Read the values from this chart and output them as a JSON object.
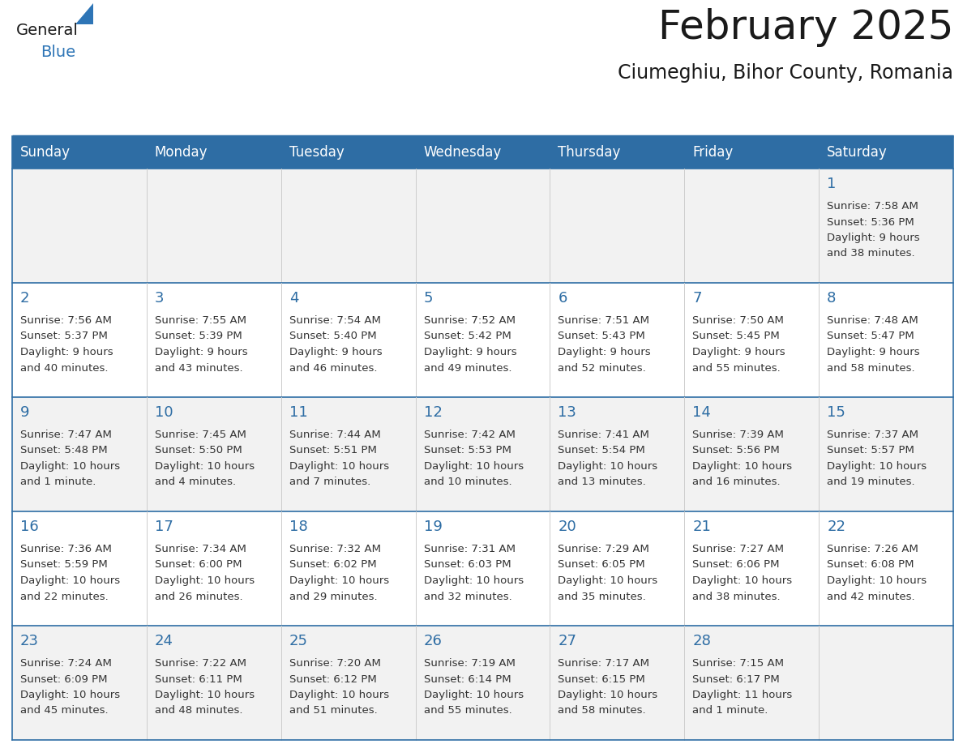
{
  "title": "February 2025",
  "subtitle": "Ciumeghiu, Bihor County, Romania",
  "header_bg": "#2E6DA4",
  "header_text_color": "#FFFFFF",
  "cell_bg_gray": "#F2F2F2",
  "cell_bg_white": "#FFFFFF",
  "day_headers": [
    "Sunday",
    "Monday",
    "Tuesday",
    "Wednesday",
    "Thursday",
    "Friday",
    "Saturday"
  ],
  "title_color": "#1a1a1a",
  "subtitle_color": "#1a1a1a",
  "day_num_color": "#2E6DA4",
  "info_color": "#333333",
  "line_color": "#2E6DA4",
  "border_color": "#2E6DA4",
  "sep_color": "#CCCCCC",
  "logo_general_color": "#1a1a1a",
  "logo_blue_color": "#2E75B6",
  "title_fontsize": 36,
  "subtitle_fontsize": 17,
  "header_fontsize": 12,
  "daynum_fontsize": 13,
  "info_fontsize": 9.5,
  "calendar": [
    [
      null,
      null,
      null,
      null,
      null,
      null,
      {
        "day": 1,
        "sunrise": "7:58 AM",
        "sunset": "5:36 PM",
        "daylight": "9 hours and 38 minutes."
      }
    ],
    [
      {
        "day": 2,
        "sunrise": "7:56 AM",
        "sunset": "5:37 PM",
        "daylight": "9 hours and 40 minutes."
      },
      {
        "day": 3,
        "sunrise": "7:55 AM",
        "sunset": "5:39 PM",
        "daylight": "9 hours and 43 minutes."
      },
      {
        "day": 4,
        "sunrise": "7:54 AM",
        "sunset": "5:40 PM",
        "daylight": "9 hours and 46 minutes."
      },
      {
        "day": 5,
        "sunrise": "7:52 AM",
        "sunset": "5:42 PM",
        "daylight": "9 hours and 49 minutes."
      },
      {
        "day": 6,
        "sunrise": "7:51 AM",
        "sunset": "5:43 PM",
        "daylight": "9 hours and 52 minutes."
      },
      {
        "day": 7,
        "sunrise": "7:50 AM",
        "sunset": "5:45 PM",
        "daylight": "9 hours and 55 minutes."
      },
      {
        "day": 8,
        "sunrise": "7:48 AM",
        "sunset": "5:47 PM",
        "daylight": "9 hours and 58 minutes."
      }
    ],
    [
      {
        "day": 9,
        "sunrise": "7:47 AM",
        "sunset": "5:48 PM",
        "daylight": "10 hours and 1 minute."
      },
      {
        "day": 10,
        "sunrise": "7:45 AM",
        "sunset": "5:50 PM",
        "daylight": "10 hours and 4 minutes."
      },
      {
        "day": 11,
        "sunrise": "7:44 AM",
        "sunset": "5:51 PM",
        "daylight": "10 hours and 7 minutes."
      },
      {
        "day": 12,
        "sunrise": "7:42 AM",
        "sunset": "5:53 PM",
        "daylight": "10 hours and 10 minutes."
      },
      {
        "day": 13,
        "sunrise": "7:41 AM",
        "sunset": "5:54 PM",
        "daylight": "10 hours and 13 minutes."
      },
      {
        "day": 14,
        "sunrise": "7:39 AM",
        "sunset": "5:56 PM",
        "daylight": "10 hours and 16 minutes."
      },
      {
        "day": 15,
        "sunrise": "7:37 AM",
        "sunset": "5:57 PM",
        "daylight": "10 hours and 19 minutes."
      }
    ],
    [
      {
        "day": 16,
        "sunrise": "7:36 AM",
        "sunset": "5:59 PM",
        "daylight": "10 hours and 22 minutes."
      },
      {
        "day": 17,
        "sunrise": "7:34 AM",
        "sunset": "6:00 PM",
        "daylight": "10 hours and 26 minutes."
      },
      {
        "day": 18,
        "sunrise": "7:32 AM",
        "sunset": "6:02 PM",
        "daylight": "10 hours and 29 minutes."
      },
      {
        "day": 19,
        "sunrise": "7:31 AM",
        "sunset": "6:03 PM",
        "daylight": "10 hours and 32 minutes."
      },
      {
        "day": 20,
        "sunrise": "7:29 AM",
        "sunset": "6:05 PM",
        "daylight": "10 hours and 35 minutes."
      },
      {
        "day": 21,
        "sunrise": "7:27 AM",
        "sunset": "6:06 PM",
        "daylight": "10 hours and 38 minutes."
      },
      {
        "day": 22,
        "sunrise": "7:26 AM",
        "sunset": "6:08 PM",
        "daylight": "10 hours and 42 minutes."
      }
    ],
    [
      {
        "day": 23,
        "sunrise": "7:24 AM",
        "sunset": "6:09 PM",
        "daylight": "10 hours and 45 minutes."
      },
      {
        "day": 24,
        "sunrise": "7:22 AM",
        "sunset": "6:11 PM",
        "daylight": "10 hours and 48 minutes."
      },
      {
        "day": 25,
        "sunrise": "7:20 AM",
        "sunset": "6:12 PM",
        "daylight": "10 hours and 51 minutes."
      },
      {
        "day": 26,
        "sunrise": "7:19 AM",
        "sunset": "6:14 PM",
        "daylight": "10 hours and 55 minutes."
      },
      {
        "day": 27,
        "sunrise": "7:17 AM",
        "sunset": "6:15 PM",
        "daylight": "10 hours and 58 minutes."
      },
      {
        "day": 28,
        "sunrise": "7:15 AM",
        "sunset": "6:17 PM",
        "daylight": "11 hours and 1 minute."
      },
      null
    ]
  ]
}
